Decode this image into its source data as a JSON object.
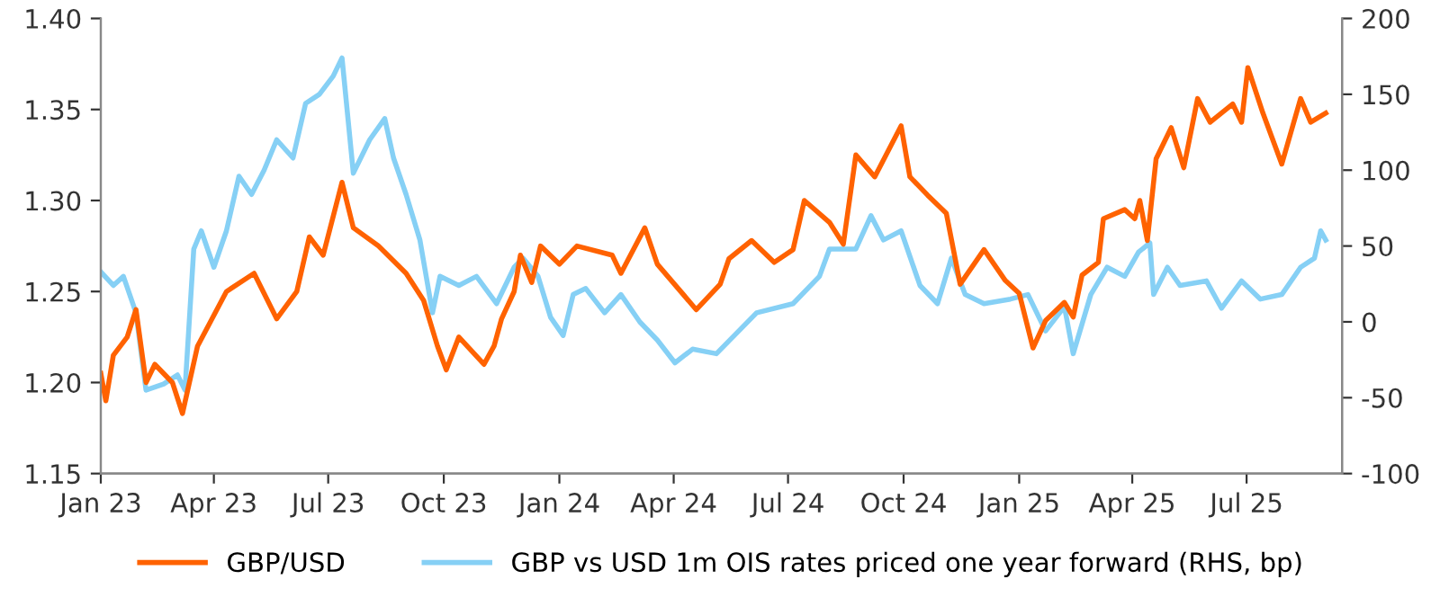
{
  "chart_data": {
    "type": "line",
    "legend": "bottom",
    "grid": false,
    "line_style": "solid",
    "marker": "none",
    "xlim": [
      "2023-01-01",
      "2025-09-15"
    ],
    "xticks": [
      {
        "value": "2023-01-01",
        "label": "Jan 23"
      },
      {
        "value": "2023-04-01",
        "label": "Apr 23"
      },
      {
        "value": "2023-07-01",
        "label": "Jul 23"
      },
      {
        "value": "2023-10-01",
        "label": "Oct 23"
      },
      {
        "value": "2024-01-01",
        "label": "Jan 24"
      },
      {
        "value": "2024-04-01",
        "label": "Apr 24"
      },
      {
        "value": "2024-07-01",
        "label": "Jul 24"
      },
      {
        "value": "2024-10-01",
        "label": "Oct 24"
      },
      {
        "value": "2025-01-01",
        "label": "Jan 25"
      },
      {
        "value": "2025-04-01",
        "label": "Apr 25"
      },
      {
        "value": "2025-07-01",
        "label": "Jul 25"
      }
    ],
    "ylim": [
      1.15,
      1.4
    ],
    "yticks": [
      {
        "value": 1.15,
        "label": "1.15"
      },
      {
        "value": 1.2,
        "label": "1.20"
      },
      {
        "value": 1.25,
        "label": "1.25"
      },
      {
        "value": 1.3,
        "label": "1.30"
      },
      {
        "value": 1.35,
        "label": "1.35"
      },
      {
        "value": 1.4,
        "label": "1.40"
      }
    ],
    "y2lim": [
      -100,
      200
    ],
    "y2ticks": [
      -100,
      -50,
      0,
      50,
      100,
      150,
      200
    ],
    "series": [
      {
        "name": "GBP/USD",
        "color": "#ff6200",
        "x": [
          "2023-01-01",
          "2023-01-05",
          "2023-01-11",
          "2023-01-22",
          "2023-01-29",
          "2023-02-06",
          "2023-02-13",
          "2023-02-27",
          "2023-03-07",
          "2023-03-19",
          "2023-04-11",
          "2023-05-03",
          "2023-05-21",
          "2023-06-06",
          "2023-06-16",
          "2023-06-27",
          "2023-07-12",
          "2023-07-21",
          "2023-08-10",
          "2023-09-01",
          "2023-09-15",
          "2023-09-26",
          "2023-10-03",
          "2023-10-13",
          "2023-11-02",
          "2023-11-10",
          "2023-11-16",
          "2023-11-26",
          "2023-12-01",
          "2023-12-10",
          "2023-12-17",
          "2024-01-01",
          "2024-01-15",
          "2024-02-12",
          "2024-02-19",
          "2024-03-09",
          "2024-03-19",
          "2024-04-19",
          "2024-05-08",
          "2024-05-15",
          "2024-06-02",
          "2024-06-20",
          "2024-07-05",
          "2024-07-14",
          "2024-08-03",
          "2024-08-14",
          "2024-08-24",
          "2024-09-08",
          "2024-09-29",
          "2024-10-06",
          "2024-10-20",
          "2024-11-04",
          "2024-11-15",
          "2024-12-04",
          "2024-12-21",
          "2025-01-01",
          "2025-01-12",
          "2025-01-22",
          "2025-02-06",
          "2025-02-13",
          "2025-02-20",
          "2025-03-05",
          "2025-03-09",
          "2025-03-26",
          "2025-04-03",
          "2025-04-07",
          "2025-04-13",
          "2025-04-20",
          "2025-05-02",
          "2025-05-12",
          "2025-05-23",
          "2025-06-02",
          "2025-06-20",
          "2025-06-27",
          "2025-07-02",
          "2025-07-14",
          "2025-07-29",
          "2025-08-13",
          "2025-08-21",
          "2025-09-02"
        ],
        "values": [
          1.205,
          1.19,
          1.215,
          1.225,
          1.24,
          1.2,
          1.21,
          1.2,
          1.183,
          1.22,
          1.25,
          1.26,
          1.235,
          1.25,
          1.28,
          1.27,
          1.31,
          1.285,
          1.275,
          1.26,
          1.245,
          1.22,
          1.207,
          1.225,
          1.21,
          1.22,
          1.235,
          1.25,
          1.27,
          1.255,
          1.275,
          1.265,
          1.275,
          1.27,
          1.26,
          1.285,
          1.265,
          1.24,
          1.254,
          1.268,
          1.278,
          1.266,
          1.273,
          1.3,
          1.288,
          1.276,
          1.325,
          1.313,
          1.341,
          1.313,
          1.303,
          1.293,
          1.254,
          1.273,
          1.256,
          1.249,
          1.219,
          1.234,
          1.244,
          1.236,
          1.259,
          1.266,
          1.29,
          1.295,
          1.29,
          1.3,
          1.278,
          1.323,
          1.34,
          1.318,
          1.356,
          1.343,
          1.353,
          1.343,
          1.373,
          1.348,
          1.32,
          1.356,
          1.343,
          1.348
        ]
      },
      {
        "name": "GBP vs USD 1m OIS rates priced one year forward (RHS, bp)",
        "color": "#86d0f5",
        "axis": "y2",
        "x": [
          "2023-01-01",
          "2023-01-11",
          "2023-01-19",
          "2023-01-29",
          "2023-02-06",
          "2023-02-20",
          "2023-03-03",
          "2023-03-09",
          "2023-03-16",
          "2023-03-22",
          "2023-04-01",
          "2023-04-11",
          "2023-04-21",
          "2023-05-01",
          "2023-05-11",
          "2023-05-21",
          "2023-06-03",
          "2023-06-13",
          "2023-06-24",
          "2023-07-05",
          "2023-07-12",
          "2023-07-21",
          "2023-08-03",
          "2023-08-15",
          "2023-08-22",
          "2023-09-01",
          "2023-09-12",
          "2023-09-22",
          "2023-09-28",
          "2023-10-13",
          "2023-10-27",
          "2023-11-12",
          "2023-11-26",
          "2023-12-03",
          "2023-12-15",
          "2023-12-25",
          "2024-01-04",
          "2024-01-12",
          "2024-01-22",
          "2024-02-06",
          "2024-02-19",
          "2024-03-05",
          "2024-03-19",
          "2024-04-02",
          "2024-04-16",
          "2024-05-05",
          "2024-06-06",
          "2024-07-05",
          "2024-07-26",
          "2024-08-03",
          "2024-08-24",
          "2024-09-05",
          "2024-09-15",
          "2024-09-29",
          "2024-10-14",
          "2024-10-28",
          "2024-11-08",
          "2024-11-19",
          "2024-12-04",
          "2024-12-25",
          "2025-01-08",
          "2025-01-22",
          "2025-02-06",
          "2025-02-13",
          "2025-02-27",
          "2025-03-12",
          "2025-03-26",
          "2025-04-06",
          "2025-04-15",
          "2025-04-18",
          "2025-04-29",
          "2025-05-09",
          "2025-05-30",
          "2025-06-11",
          "2025-06-27",
          "2025-07-12",
          "2025-07-29",
          "2025-08-13",
          "2025-08-24",
          "2025-08-29",
          "2025-09-02"
        ],
        "values": [
          33,
          24,
          30,
          6,
          -45,
          -41,
          -35,
          -45,
          48,
          60,
          36,
          60,
          96,
          84,
          100,
          120,
          108,
          144,
          150,
          162,
          174,
          98,
          120,
          134,
          108,
          84,
          54,
          6,
          30,
          24,
          30,
          12,
          36,
          42,
          30,
          3,
          -9,
          18,
          22,
          6,
          18,
          0,
          -12,
          -27,
          -18,
          -21,
          6,
          12,
          30,
          48,
          48,
          70,
          54,
          60,
          24,
          12,
          42,
          18,
          12,
          15,
          18,
          -6,
          10,
          -21,
          18,
          36,
          30,
          46,
          52,
          18,
          36,
          24,
          27,
          9,
          27,
          15,
          18,
          36,
          42,
          60,
          54
        ]
      }
    ]
  }
}
